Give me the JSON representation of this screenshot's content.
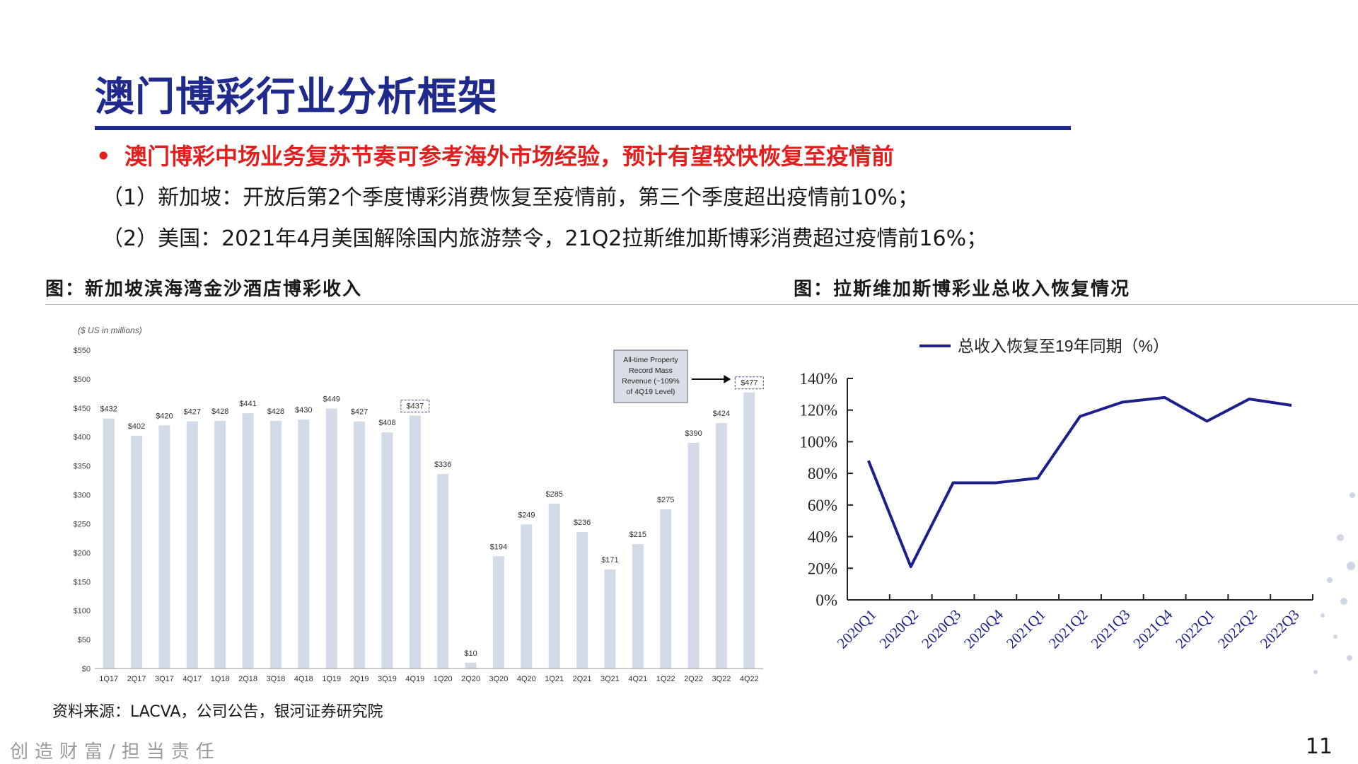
{
  "slide": {
    "title": "澳门博彩行业分析框架",
    "bullet_marker": "•",
    "bullet": "澳门博彩中场业务复苏节奏可参考海外市场经验，预计有望较快恢复至疫情前",
    "line1": "（1）新加坡：开放后第2个季度博彩消费恢复至疫情前，第三个季度超出疫情前10%；",
    "line2": "（2）美国：2021年4月美国解除国内旅游禁令，21Q2拉斯维加斯博彩消费超过疫情前16%；",
    "fig_left_title": "图：新加坡滨海湾金沙酒店博彩收入",
    "fig_right_title": "图：拉斯维加斯博彩业总收入恢复情况",
    "source": "资料来源：LACVA，公司公告，银河证券研究院",
    "footer": "创造财富/担当责任",
    "page_number": "11"
  },
  "colors": {
    "title": "#1f2a8c",
    "bullet": "#e21f1f",
    "bar": "#d3dae8",
    "line": "#1f1f8c"
  },
  "chart_data": [
    {
      "type": "bar",
      "unit_label": "($ US in millions)",
      "categories": [
        "1Q17",
        "2Q17",
        "3Q17",
        "4Q17",
        "1Q18",
        "2Q18",
        "3Q18",
        "4Q18",
        "1Q19",
        "2Q19",
        "3Q19",
        "4Q19",
        "1Q20",
        "2Q20",
        "3Q20",
        "4Q20",
        "1Q21",
        "2Q21",
        "3Q21",
        "4Q21",
        "1Q22",
        "2Q22",
        "3Q22",
        "4Q22"
      ],
      "values": [
        432,
        402,
        420,
        427,
        428,
        441,
        428,
        430,
        449,
        427,
        408,
        437,
        336,
        10,
        194,
        249,
        285,
        236,
        171,
        215,
        275,
        390,
        424,
        477
      ],
      "labels": [
        "$432",
        "$402",
        "$420",
        "$427",
        "$428",
        "$441",
        "$428",
        "$430",
        "$449",
        "$427",
        "$408",
        "$437",
        "$336",
        "$10",
        "$194",
        "$249",
        "$285",
        "$236",
        "$171",
        "$215",
        "$275",
        "$390",
        "$424",
        "$477"
      ],
      "boxed_labels": [
        11,
        23
      ],
      "yticks": [
        "$0",
        "$50",
        "$100",
        "$150",
        "$200",
        "$250",
        "$300",
        "$350",
        "$400",
        "$450",
        "$500",
        "$550"
      ],
      "ylim": [
        0,
        550
      ],
      "annotation": [
        "All-time Property",
        "Record Mass",
        "Revenue (~109%",
        "of 4Q19 Level)"
      ]
    },
    {
      "type": "line",
      "series": [
        {
          "name": "总收入恢复至19年同期（%）",
          "values": [
            88,
            21,
            74,
            74,
            77,
            116,
            125,
            128,
            113,
            127,
            123
          ]
        }
      ],
      "categories": [
        "2020Q1",
        "2020Q2",
        "2020Q3",
        "2020Q4",
        "2021Q1",
        "2021Q2",
        "2021Q3",
        "2021Q4",
        "2022Q1",
        "2022Q2",
        "2022Q3"
      ],
      "yticks": [
        "0%",
        "20%",
        "40%",
        "60%",
        "80%",
        "100%",
        "120%",
        "140%"
      ],
      "ylim": [
        0,
        140
      ]
    }
  ]
}
